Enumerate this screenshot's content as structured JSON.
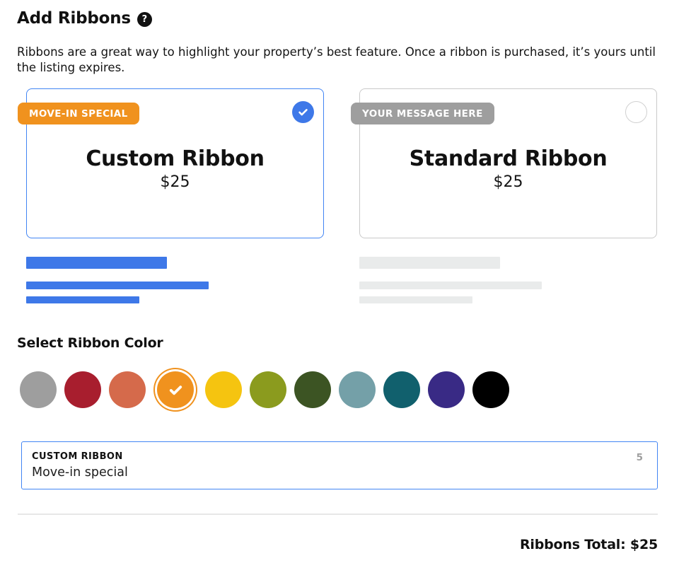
{
  "theme": {
    "accent_blue": "#3E78E8",
    "selected_border_blue": "#4285F4",
    "card_border": "#C9C9C9",
    "radio_border": "#D0D0D0",
    "badge_orange": "#F0921E",
    "badge_gray": "#9E9E9E",
    "skeleton_gray": "#E9EBEB",
    "counter_gray": "#9E9E9E",
    "divider": "#E7E7E7"
  },
  "header": {
    "title": "Add Ribbons",
    "help_icon": "question-mark",
    "description": "Ribbons are a great way to highlight your property’s best feature. Once a ribbon is purchased, it’s yours until the listing expires."
  },
  "ribbon_options": [
    {
      "id": "custom",
      "badge": "MOVE-IN SPECIAL",
      "badge_color": "#F0921E",
      "name": "Custom Ribbon",
      "price": "$25",
      "selected": true
    },
    {
      "id": "standard",
      "badge": "YOUR MESSAGE HERE",
      "badge_color": "#9E9E9E",
      "name": "Standard Ribbon",
      "price": "$25",
      "selected": false
    }
  ],
  "color_picker": {
    "heading": "Select Ribbon Color",
    "colors": [
      {
        "name": "gray",
        "hex": "#9E9E9E",
        "selected": false
      },
      {
        "name": "crimson",
        "hex": "#A81E2E",
        "selected": false
      },
      {
        "name": "terracotta",
        "hex": "#D56A4B",
        "selected": false
      },
      {
        "name": "orange",
        "hex": "#F0921E",
        "selected": true
      },
      {
        "name": "gold",
        "hex": "#F5C410",
        "selected": false
      },
      {
        "name": "olive",
        "hex": "#8B9B1E",
        "selected": false
      },
      {
        "name": "dark-green",
        "hex": "#3C5423",
        "selected": false
      },
      {
        "name": "steel-teal",
        "hex": "#74A0A8",
        "selected": false
      },
      {
        "name": "dark-teal",
        "hex": "#11606D",
        "selected": false
      },
      {
        "name": "indigo",
        "hex": "#392A85",
        "selected": false
      },
      {
        "name": "black",
        "hex": "#000000",
        "selected": false
      }
    ]
  },
  "custom_ribbon_input": {
    "label": "CUSTOM RIBBON",
    "value": "Move-in special",
    "counter": "5"
  },
  "footer": {
    "total_label": "Ribbons Total: $25"
  }
}
